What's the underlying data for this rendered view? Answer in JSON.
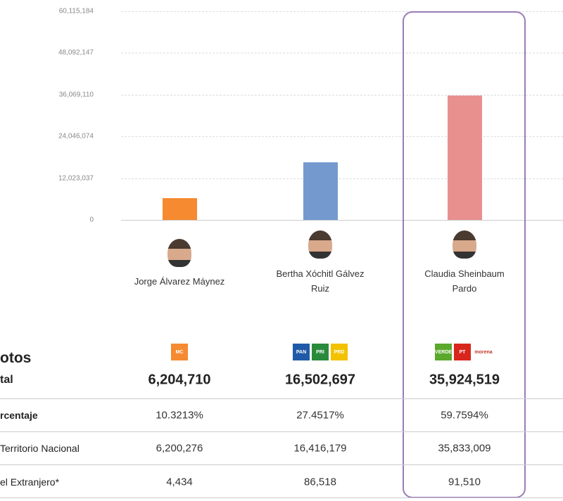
{
  "chart_data": {
    "type": "bar",
    "ylim": [
      0,
      60115184
    ],
    "yticks": [
      "0",
      "12,023,037",
      "24,046,074",
      "36,069,110",
      "48,092,147",
      "60,115,184"
    ],
    "ytick_values": [
      0,
      12023037,
      24046074,
      36069110,
      48092147,
      60115184
    ],
    "categories": [
      "Jorge Álvarez Máynez",
      "Bertha Xóchitl Gálvez Ruiz",
      "Claudia Sheinbaum Pardo"
    ],
    "values": [
      6204710,
      16502697,
      35924519
    ],
    "colors": [
      "#f58a30",
      "#7499cf",
      "#e8908e"
    ],
    "highlighted": "Claudia Sheinbaum Pardo",
    "grid": true
  },
  "candidates": [
    {
      "name": "Jorge Álvarez Máynez",
      "parties": [
        {
          "label": "MC",
          "color": "#f58a30"
        }
      ],
      "total": "6,204,710",
      "percent": "10.3213%",
      "national": "6,200,276",
      "abroad": "4,434"
    },
    {
      "name": "Bertha Xóchitl Gálvez Ruiz",
      "parties": [
        {
          "label": "PAN",
          "color": "#1f5aa8"
        },
        {
          "label": "PRI",
          "color": "#2a8a3c"
        },
        {
          "label": "PRD",
          "color": "#f2c200"
        }
      ],
      "total": "16,502,697",
      "percent": "27.4517%",
      "national": "16,416,179",
      "abroad": "86,518"
    },
    {
      "name": "Claudia Sheinbaum Pardo",
      "parties": [
        {
          "label": "VERDE",
          "color": "#5aa82c"
        },
        {
          "label": "PT",
          "color": "#d9261c"
        },
        {
          "label": "morena",
          "color": "#ffffff"
        }
      ],
      "total": "35,924,519",
      "percent": "59.7594%",
      "national": "35,833,009",
      "abroad": "91,510"
    }
  ],
  "table": {
    "heading": "otos",
    "rows": [
      "tal",
      "rcentaje",
      "Territorio Nacional",
      "el Extranjero*"
    ]
  },
  "highlight_color": "#9b7bb5"
}
